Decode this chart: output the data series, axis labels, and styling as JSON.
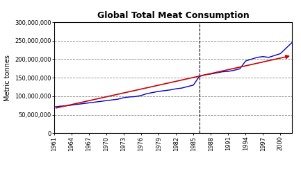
{
  "title": "Global Total Meat Consumption",
  "ylabel": "Metric tonnes",
  "xlabel": "",
  "xlim": [
    1961,
    2002
  ],
  "ylim": [
    0,
    300000000
  ],
  "yticks": [
    0,
    50000000,
    100000000,
    150000000,
    200000000,
    250000000,
    300000000
  ],
  "ytick_labels": [
    "0",
    "50,000,000",
    "100,000,000",
    "150,000,000",
    "200,000,000",
    "250,000,000",
    "300,000,000"
  ],
  "xticks": [
    1961,
    1964,
    1967,
    1970,
    1973,
    1976,
    1979,
    1982,
    1985,
    1988,
    1991,
    1994,
    1997,
    2000
  ],
  "vertical_dashed_x": 1986,
  "blue_line_color": "#0000CC",
  "red_line_color": "#CC0000",
  "background_color": "#ffffff",
  "plot_bg_color": "#ffffff",
  "title_fontsize": 9,
  "axis_fontsize": 7,
  "tick_fontsize": 6,
  "blue_data": {
    "years": [
      1961,
      1962,
      1963,
      1964,
      1965,
      1966,
      1967,
      1968,
      1969,
      1970,
      1971,
      1972,
      1973,
      1974,
      1975,
      1976,
      1977,
      1978,
      1979,
      1980,
      1981,
      1982,
      1983,
      1984,
      1985,
      1986,
      1987,
      1988,
      1989,
      1990,
      1991,
      1992,
      1993,
      1994,
      1995,
      1996,
      1997,
      1998,
      1999,
      2000,
      2001,
      2002
    ],
    "values": [
      71000000,
      73000000,
      74000000,
      76000000,
      78000000,
      80000000,
      82000000,
      84000000,
      86000000,
      88000000,
      90000000,
      92000000,
      96000000,
      98000000,
      99000000,
      102000000,
      107000000,
      110000000,
      113000000,
      115000000,
      117000000,
      120000000,
      122000000,
      126000000,
      130000000,
      153000000,
      158000000,
      160000000,
      163000000,
      166000000,
      167000000,
      170000000,
      174000000,
      195000000,
      200000000,
      205000000,
      207000000,
      205000000,
      210000000,
      215000000,
      230000000,
      245000000
    ]
  },
  "red_line_data": {
    "years": [
      1961,
      2002
    ],
    "values": [
      67000000,
      210000000
    ]
  }
}
